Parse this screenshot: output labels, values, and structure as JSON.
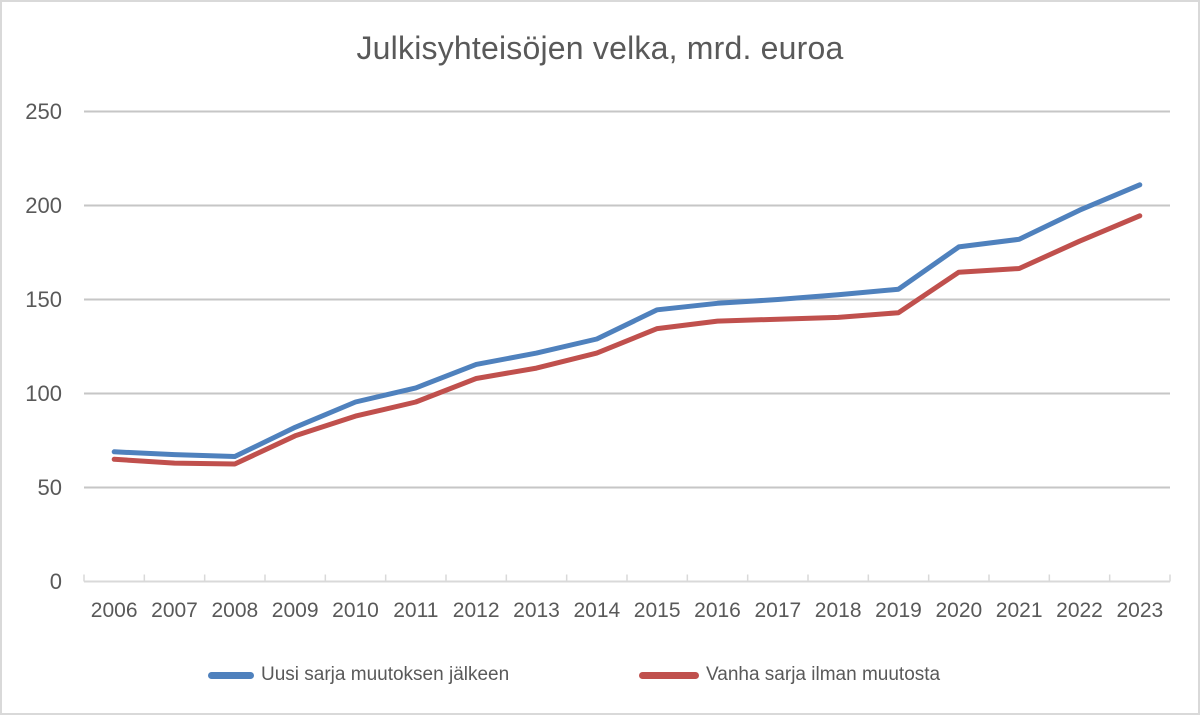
{
  "chart": {
    "title": "Julkisyhteisöjen velka, mrd. euroa"
  },
  "chart_data": {
    "type": "line",
    "title": "Julkisyhteisöjen velka, mrd. euroa",
    "categories": [
      "2006",
      "2007",
      "2008",
      "2009",
      "2010",
      "2011",
      "2012",
      "2013",
      "2014",
      "2015",
      "2016",
      "2017",
      "2018",
      "2019",
      "2020",
      "2021",
      "2022",
      "2023"
    ],
    "series": [
      {
        "name": "Uusi sarja muutoksen jälkeen",
        "color": "#4F81BD",
        "values": [
          69,
          67.5,
          66.5,
          82,
          95.5,
          103,
          115.5,
          121.5,
          129,
          144.5,
          148,
          150,
          152.5,
          155.5,
          178,
          182,
          197.5,
          211
        ]
      },
      {
        "name": "Vanha sarja ilman muutosta",
        "color": "#C0504D",
        "values": [
          65,
          63,
          62.5,
          77.5,
          88,
          95.5,
          108,
          113.5,
          121.5,
          134.5,
          138.5,
          139.5,
          140.5,
          143,
          164.5,
          166.5,
          181,
          194.5
        ]
      }
    ],
    "xlabel": "",
    "ylabel": "",
    "ylim": [
      0,
      250
    ],
    "yticks": [
      0,
      50,
      100,
      150,
      200,
      250
    ],
    "grid": true,
    "legend_position": "bottom",
    "colors": {
      "grid_line": "#C6C6C6",
      "axis_line": "#D9D9D9",
      "label_text": "#595959",
      "background": "#FFFFFF",
      "frame_border": "#D9D9D9"
    }
  }
}
